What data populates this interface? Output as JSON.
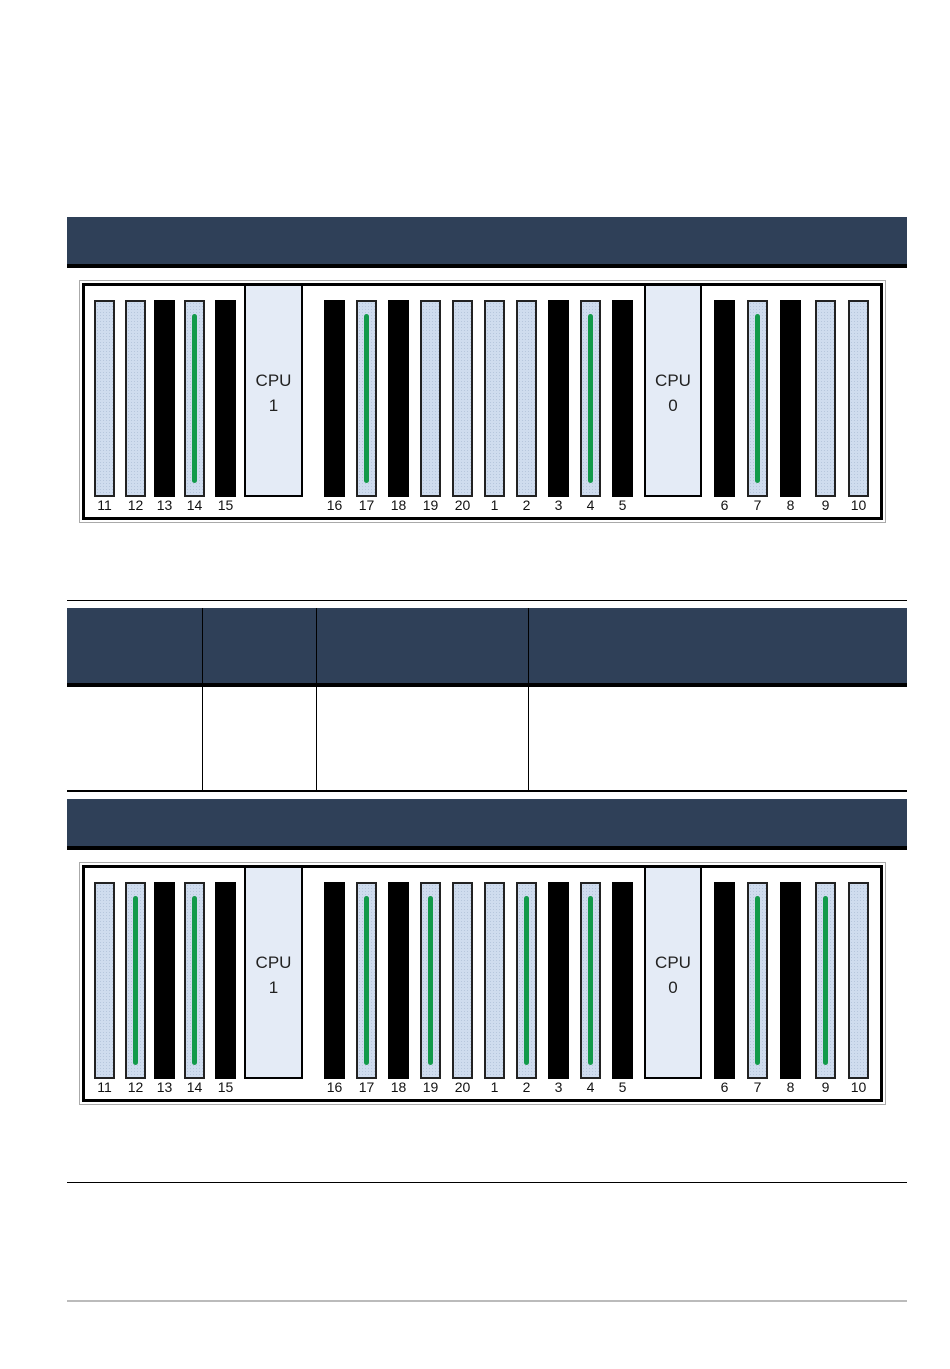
{
  "colors": {
    "header_bar": "#2f4058",
    "populated_dimm": "#129a4a",
    "empty_slot": "#cfdcee",
    "blank_slot": "#000000",
    "cpu": "#e4ebf6"
  },
  "cpus": [
    {
      "label": "CPU",
      "number": "1"
    },
    {
      "label": "CPU",
      "number": "0"
    }
  ],
  "slot_labels": [
    "11",
    "12",
    "13",
    "14",
    "15",
    "16",
    "17",
    "18",
    "19",
    "20",
    "1",
    "2",
    "3",
    "4",
    "5",
    "6",
    "7",
    "8",
    "9",
    "10"
  ],
  "diagrams": [
    {
      "slots": [
        "empty",
        "empty",
        "blank",
        "populated",
        "blank",
        "blank",
        "populated",
        "blank",
        "empty",
        "empty",
        "empty",
        "empty",
        "blank",
        "populated",
        "blank",
        "blank",
        "populated",
        "blank",
        "empty",
        "empty"
      ]
    },
    {
      "slots": [
        "empty",
        "populated",
        "blank",
        "populated",
        "blank",
        "blank",
        "populated",
        "blank",
        "populated",
        "empty",
        "empty",
        "populated",
        "blank",
        "populated",
        "blank",
        "blank",
        "populated",
        "blank",
        "populated",
        "empty"
      ]
    }
  ]
}
